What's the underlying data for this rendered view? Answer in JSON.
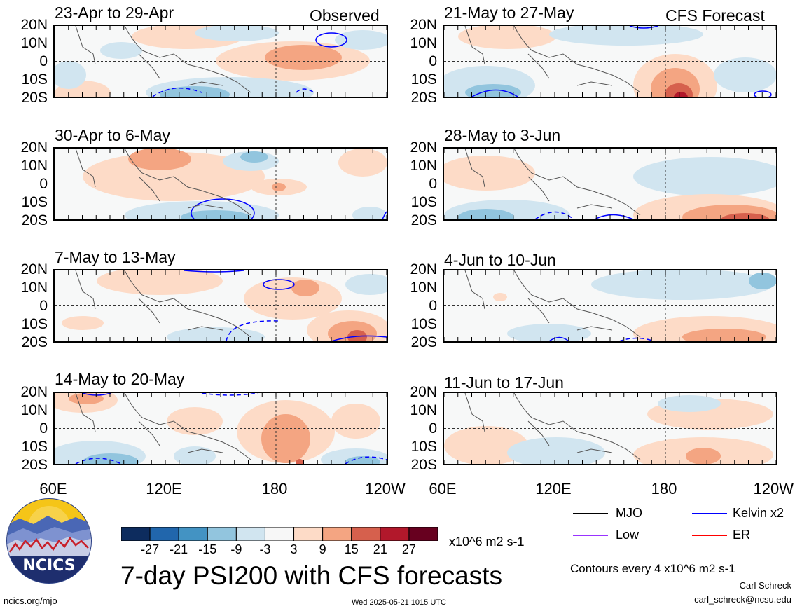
{
  "panels": [
    {
      "title": "23-Apr to 29-Apr",
      "tag": "Observed"
    },
    {
      "title": "21-May to 27-May",
      "tag": "CFS Forecast"
    },
    {
      "title": "30-Apr to 6-May",
      "tag": ""
    },
    {
      "title": "28-May to 3-Jun",
      "tag": ""
    },
    {
      "title": "7-May to 13-May",
      "tag": ""
    },
    {
      "title": "4-Jun to 10-Jun",
      "tag": ""
    },
    {
      "title": "14-May to 20-May",
      "tag": ""
    },
    {
      "title": "11-Jun to 17-Jun",
      "tag": ""
    }
  ],
  "lat_labels": [
    "20N",
    "10N",
    "0",
    "10S",
    "20S"
  ],
  "lon_labels": [
    "60E",
    "120E",
    "180",
    "120W"
  ],
  "colorbar": {
    "ticks": [
      "-27",
      "-21",
      "-15",
      "-9",
      "-3",
      "3",
      "9",
      "15",
      "21",
      "27"
    ],
    "colors": [
      "#0d2c5e",
      "#2166ac",
      "#4393c3",
      "#92c5de",
      "#d1e5f0",
      "#f7f7f7",
      "#fddbc7",
      "#f4a582",
      "#d6604d",
      "#b2182b",
      "#67001f"
    ],
    "units": "x10^6 m2 s-1"
  },
  "title": "7-day PSI200 with CFS forecasts",
  "legend": [
    {
      "label": "MJO",
      "color": "#000000"
    },
    {
      "label": "Kelvin x2",
      "color": "#0000ff"
    },
    {
      "label": "Low",
      "color": "#9933ff"
    },
    {
      "label": "ER",
      "color": "#ff0000"
    }
  ],
  "contour_note": "Contours every 4 x10^6 m2 s-1",
  "author": "Carl Schreck",
  "email": "carl_schreck@ncsu.edu",
  "url": "ncics.org/mjo",
  "timestamp": "Wed 2025-05-21 1015 UTC",
  "logo_text": "NCICS"
}
